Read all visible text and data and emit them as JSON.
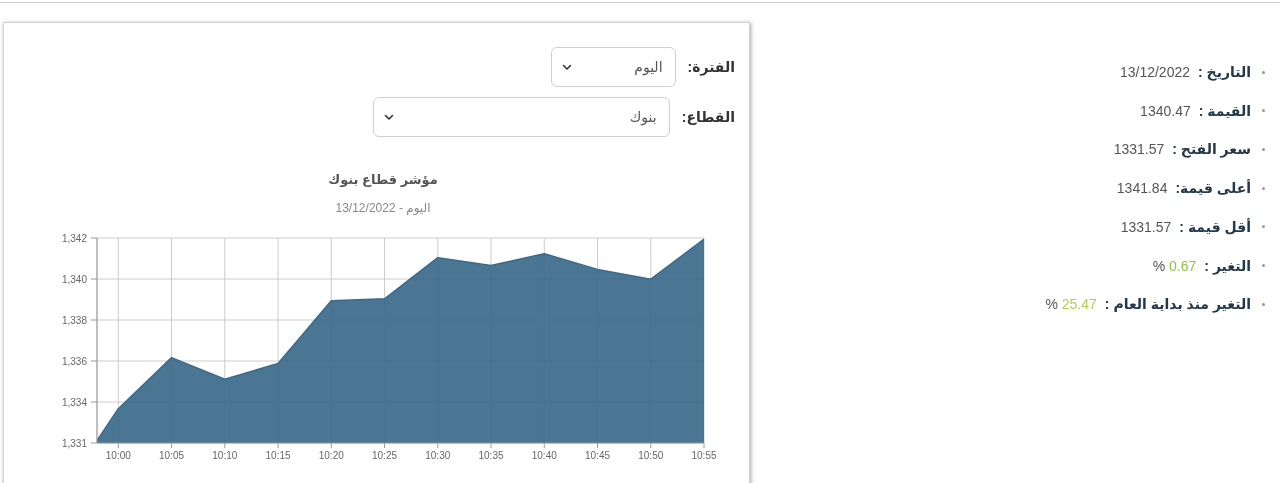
{
  "chart_data": [
    {
      "type": "area",
      "title": "مؤشر قطاع بنوك",
      "subtitle": "اليوم - 13/12/2022",
      "x": [
        "2022-12-13T09:58",
        "2022-12-13T10:00",
        "2022-12-13T10:05",
        "2022-12-13T10:10",
        "2022-12-13T10:15",
        "2022-12-13T10:20",
        "2022-12-13T10:25",
        "2022-12-13T10:30",
        "2022-12-13T10:35",
        "2022-12-13T10:40",
        "2022-12-13T10:45",
        "2022-12-13T10:50",
        "2022-12-13T10:55"
      ],
      "values": [
        1331.57,
        1333.2,
        1335.8,
        1334.7,
        1335.5,
        1338.7,
        1338.8,
        1340.9,
        1340.5,
        1341.1,
        1340.3,
        1339.8,
        1341.84
      ],
      "color": "#3b6a8a",
      "xlim": [
        "2022-12-13T09:58",
        "2022-12-13T10:55"
      ],
      "xticks": [
        {
          "value": "2022-12-13T10:00",
          "label": "10:00"
        },
        {
          "value": "2022-12-13T10:05",
          "label": "10:05"
        },
        {
          "value": "2022-12-13T10:10",
          "label": "10:10"
        },
        {
          "value": "2022-12-13T10:15",
          "label": "10:15"
        },
        {
          "value": "2022-12-13T10:20",
          "label": "10:20"
        },
        {
          "value": "2022-12-13T10:25",
          "label": "10:25"
        },
        {
          "value": "2022-12-13T10:30",
          "label": "10:30"
        },
        {
          "value": "2022-12-13T10:35",
          "label": "10:35"
        },
        {
          "value": "2022-12-13T10:40",
          "label": "10:40"
        },
        {
          "value": "2022-12-13T10:45",
          "label": "10:45"
        },
        {
          "value": "2022-12-13T10:50",
          "label": "10:50"
        },
        {
          "value": "2022-12-13T10:55",
          "label": "10:55"
        }
      ],
      "ylim": [
        1331.45,
        1341.9
      ],
      "yticks": [
        {
          "value": 1331.45,
          "label": "1,331"
        },
        {
          "value": 1333.54,
          "label": "1,334"
        },
        {
          "value": 1335.63,
          "label": "1,336"
        },
        {
          "value": 1337.72,
          "label": "1,338"
        },
        {
          "value": 1339.81,
          "label": "1,340"
        },
        {
          "value": 1341.9,
          "label": "1,342"
        }
      ],
      "grid": true,
      "annotations": [
        "الفترة:",
        "اليوم",
        "القطاع:",
        "بنوك"
      ]
    },
    {
      "type": "other",
      "annotations": [
        "التاريخ : 13/12/2022",
        "القيمة : 1340.47",
        "سعر الفتح : 1331.57",
        "أعلى قيمة: 1341.84",
        "أقل قيمة : 1331.57",
        "التغير : 0.67 %",
        "التغير منذ بداية العام : 25.47 %"
      ],
      "colors": [
        "#555555",
        "#555555",
        "#555555",
        "#555555",
        "#555555",
        "#8cc63e",
        "#b5cc5a"
      ]
    }
  ]
}
